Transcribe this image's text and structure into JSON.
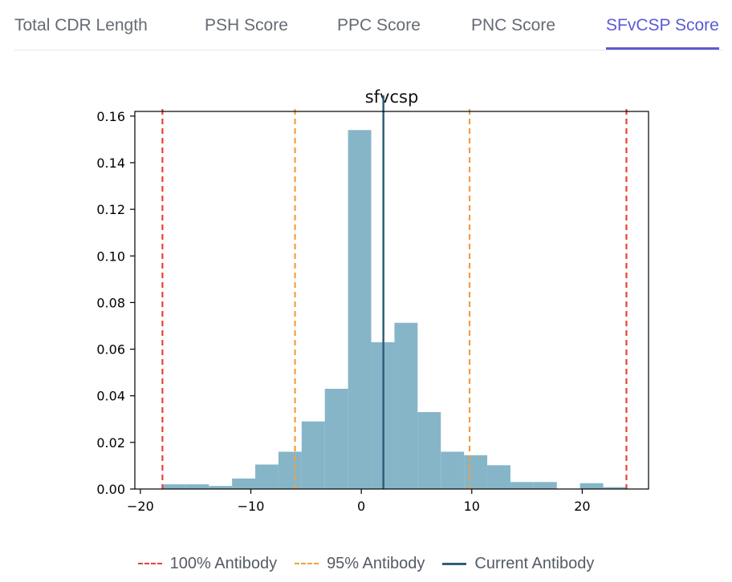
{
  "tabs": [
    {
      "label": "Total CDR Length",
      "active": false
    },
    {
      "label": "PSH Score",
      "active": false
    },
    {
      "label": "PPC Score",
      "active": false
    },
    {
      "label": "PNC Score",
      "active": false
    },
    {
      "label": "SFvCSP Score",
      "active": true
    }
  ],
  "colors": {
    "bar": "#86b5c8",
    "red": "#e8403a",
    "orange": "#f0a040",
    "current": "#2f5f7a",
    "tab_active": "#5b5bd6"
  },
  "chart_data": {
    "type": "bar",
    "title": "sfvcsp",
    "xlabel": "",
    "ylabel": "",
    "xlim": [
      -20.5,
      26
    ],
    "ylim": [
      0,
      0.162
    ],
    "xticks": [
      -20,
      -10,
      0,
      10,
      20
    ],
    "xtick_labels": [
      "−20",
      "−10",
      "0",
      "10",
      "20"
    ],
    "yticks": [
      0,
      0.02,
      0.04,
      0.06,
      0.08,
      0.1,
      0.12,
      0.14,
      0.16
    ],
    "ytick_labels": [
      "0.00",
      "0.02",
      "0.04",
      "0.06",
      "0.08",
      "0.10",
      "0.12",
      "0.14",
      "0.16"
    ],
    "bin_edges": [
      -18.0,
      -15.9,
      -13.8,
      -11.7,
      -9.6,
      -7.5,
      -5.4,
      -3.3,
      -1.2,
      0.9,
      3.0,
      5.1,
      7.2,
      9.3,
      11.4,
      13.5,
      15.6,
      17.7,
      19.8,
      21.9,
      24.0
    ],
    "values": [
      0.002,
      0.002,
      0.0013,
      0.0045,
      0.0105,
      0.016,
      0.029,
      0.043,
      0.154,
      0.063,
      0.0713,
      0.033,
      0.016,
      0.0145,
      0.0102,
      0.003,
      0.003,
      0,
      0.0025,
      0.0008
    ],
    "reference_lines": [
      {
        "x": -18.0,
        "style": "dashed",
        "color": "#e8403a",
        "legend": "100% Antibody"
      },
      {
        "x": 24.0,
        "style": "dashed",
        "color": "#e8403a",
        "legend": "100% Antibody"
      },
      {
        "x": -6.0,
        "style": "dashed",
        "color": "#f0a040",
        "legend": "95% Antibody"
      },
      {
        "x": 9.8,
        "style": "dashed",
        "color": "#f0a040",
        "legend": "95% Antibody"
      },
      {
        "x": 2.0,
        "style": "solid",
        "color": "#2f5f7a",
        "legend": "Current Antibody"
      }
    ],
    "legend": {
      "position": "bottom",
      "entries": [
        {
          "label": "100% Antibody",
          "style": "dashed",
          "color": "#e8403a"
        },
        {
          "label": "95% Antibody",
          "style": "dashed",
          "color": "#f0a040"
        },
        {
          "label": "Current Antibody",
          "style": "solid",
          "color": "#2f5f7a"
        }
      ]
    }
  }
}
